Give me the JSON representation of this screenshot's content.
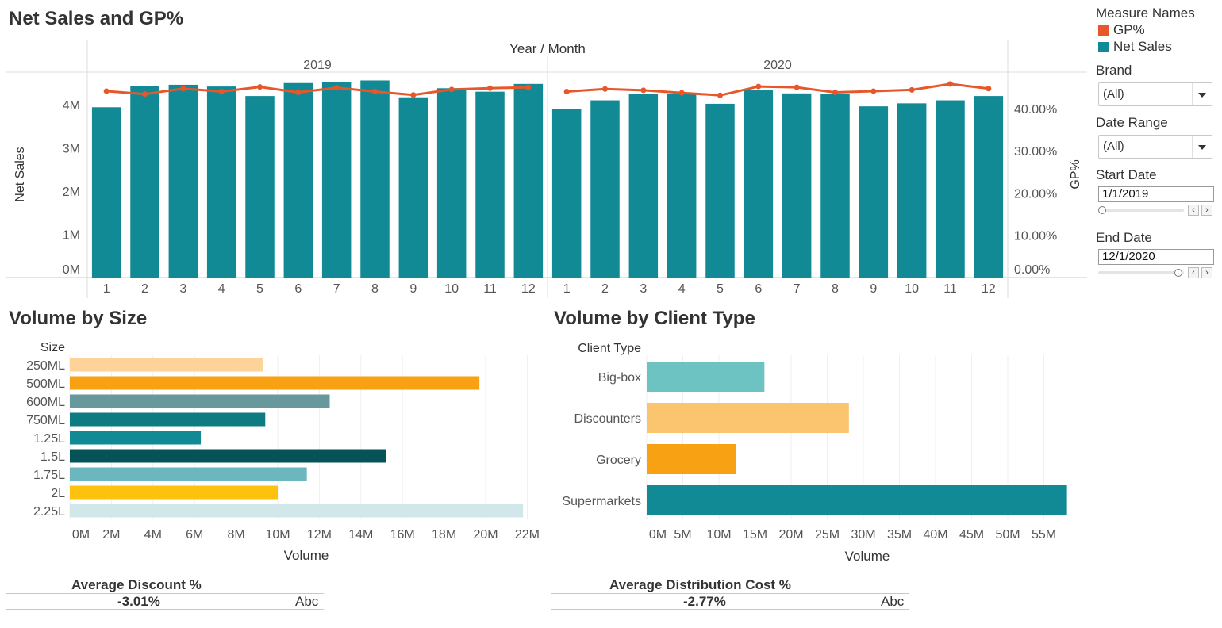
{
  "dashboard": {
    "title_main": "Net Sales and GP%",
    "title_size": "Volume by Size",
    "title_client": "Volume by Client Type"
  },
  "filters": {
    "legend_title": "Measure Names",
    "legend_items": [
      {
        "label": "GP%",
        "color": "#e8572a"
      },
      {
        "label": "Net Sales",
        "color": "#128a96"
      }
    ],
    "brand_label": "Brand",
    "brand_value": "(All)",
    "date_range_label": "Date Range",
    "date_range_value": "(All)",
    "start_date_label": "Start Date",
    "start_date_value": "1/1/2019",
    "end_date_label": "End Date",
    "end_date_value": "12/1/2020"
  },
  "kpis": {
    "discount_label": "Average Discount %",
    "discount_value": "-3.01%",
    "discount_abc": "Abc",
    "distribution_label": "Average Distribution Cost %",
    "distribution_value": "-2.77%",
    "distribution_abc": "Abc"
  },
  "chart_data": [
    {
      "type": "bar",
      "title": "Net Sales and GP%",
      "header": "Year  /  Month",
      "years": [
        "2019",
        "2020"
      ],
      "months": [
        "1",
        "2",
        "3",
        "4",
        "5",
        "6",
        "7",
        "8",
        "9",
        "10",
        "11",
        "12"
      ],
      "ylabel": "Net Sales",
      "ylabel_right": "GP%",
      "ylim": [
        0,
        4800000
      ],
      "ylim_right": [
        0,
        0.48
      ],
      "y_ticks": [
        "0M",
        "1M",
        "2M",
        "3M",
        "4M"
      ],
      "y_ticks_right": [
        "0.00%",
        "10.00%",
        "20.00%",
        "30.00%",
        "40.00%"
      ],
      "series": [
        {
          "name": "Net Sales",
          "type": "bar",
          "color": "#128a96",
          "values": [
            3940000,
            4440000,
            4460000,
            4420000,
            4200000,
            4500000,
            4530000,
            4560000,
            4170000,
            4380000,
            4300000,
            4480000,
            3890000,
            4100000,
            4240000,
            4250000,
            4020000,
            4330000,
            4260000,
            4250000,
            3960000,
            4030000,
            4100000,
            4200000
          ]
        },
        {
          "name": "GP%",
          "type": "line",
          "color": "#e8572a",
          "values": [
            0.441,
            0.434,
            0.447,
            0.44,
            0.451,
            0.438,
            0.449,
            0.44,
            0.432,
            0.445,
            0.448,
            0.45,
            0.44,
            0.446,
            0.443,
            0.437,
            0.431,
            0.452,
            0.45,
            0.438,
            0.441,
            0.444,
            0.458,
            0.447
          ]
        }
      ],
      "grid": false,
      "legend": "right"
    },
    {
      "type": "bar",
      "orientation": "horizontal",
      "title": "Volume by Size",
      "category_header": "Size",
      "categories": [
        "250ML",
        "500ML",
        "600ML",
        "750ML",
        "1.25L",
        "1.5L",
        "1.75L",
        "2L",
        "2.25L"
      ],
      "values": [
        9300000,
        19700000,
        12500000,
        9400000,
        6300000,
        15200000,
        11400000,
        10000000,
        21800000
      ],
      "colors": [
        "#fdd39a",
        "#f8a112",
        "#67999c",
        "#0e7b82",
        "#128a96",
        "#055257",
        "#6bb7bd",
        "#fdc20d",
        "#d2e7ea"
      ],
      "xlabel": "Volume",
      "xlim": [
        0,
        23000000
      ],
      "x_ticks": [
        "0M",
        "2M",
        "4M",
        "6M",
        "8M",
        "10M",
        "12M",
        "14M",
        "16M",
        "18M",
        "20M",
        "22M"
      ]
    },
    {
      "type": "bar",
      "orientation": "horizontal",
      "title": "Volume by Client Type",
      "category_header": "Client Type",
      "categories": [
        "Big-box",
        "Discounters",
        "Grocery",
        "Supermarkets"
      ],
      "values": [
        16300000,
        28000000,
        12400000,
        58200000
      ],
      "colors": [
        "#6cc3c1",
        "#fbc56f",
        "#f8a113",
        "#128a96"
      ],
      "xlabel": "Volume",
      "xlim": [
        0,
        60000000
      ],
      "x_ticks": [
        "0M",
        "5M",
        "10M",
        "15M",
        "20M",
        "25M",
        "30M",
        "35M",
        "40M",
        "45M",
        "50M",
        "55M"
      ]
    }
  ]
}
